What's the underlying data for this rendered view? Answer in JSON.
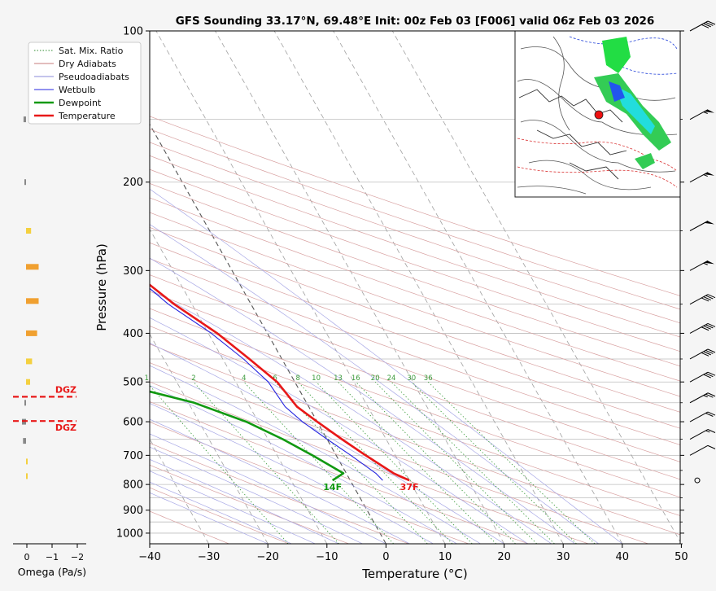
{
  "chart_data": {
    "type": "skew-t",
    "title": "GFS Sounding 33.17°N, 69.48°E Init: 00z Feb 03 [F006] valid 06z Feb 03 2026",
    "xlabel": "Temperature (°C)",
    "ylabel": "Pressure (hPa)",
    "xlim": [
      -40,
      50
    ],
    "ylim": [
      1050,
      100
    ],
    "y_scale": "log",
    "grid": true,
    "legend_position": "top-left",
    "xticks": [
      -40,
      -30,
      -20,
      -10,
      0,
      10,
      20,
      30,
      40,
      50
    ],
    "yticks": [
      100,
      200,
      300,
      400,
      500,
      600,
      700,
      800,
      900,
      1000
    ],
    "legend": [
      {
        "label": "Sat. Mix. Ratio",
        "color": "#2e8b2e",
        "style": "dotted"
      },
      {
        "label": "Dry Adiabats",
        "color": "#c77b7b",
        "style": "solid"
      },
      {
        "label": "Pseudoadiabats",
        "color": "#8a8ad8",
        "style": "solid"
      },
      {
        "label": "Wetbulb",
        "color": "#2525e0",
        "style": "solid"
      },
      {
        "label": "Dewpoint",
        "color": "#119911",
        "style": "thick"
      },
      {
        "label": "Temperature",
        "color": "#e81818",
        "style": "thick"
      }
    ],
    "series": [
      {
        "name": "Temperature",
        "color": "#e81818",
        "points": [
          [
            785,
            10
          ],
          [
            760,
            8
          ],
          [
            700,
            5
          ],
          [
            650,
            2.5
          ],
          [
            600,
            0
          ],
          [
            560,
            -2
          ],
          [
            500,
            -3
          ],
          [
            450,
            -5.5
          ],
          [
            400,
            -8.5
          ],
          [
            350,
            -13
          ],
          [
            300,
            -17
          ],
          [
            255,
            -22
          ],
          [
            200,
            -23
          ],
          [
            150,
            -25
          ],
          [
            100,
            -30
          ]
        ]
      },
      {
        "name": "Wetbulb",
        "color": "#2525e0",
        "points": [
          [
            785,
            5.5
          ],
          [
            760,
            5
          ],
          [
            700,
            2.5
          ],
          [
            650,
            0
          ],
          [
            600,
            -2.5
          ],
          [
            560,
            -4
          ],
          [
            500,
            -4.5
          ],
          [
            450,
            -6.5
          ],
          [
            400,
            -9.5
          ],
          [
            350,
            -14
          ],
          [
            300,
            -17.5
          ],
          [
            255,
            -22
          ],
          [
            200,
            -23
          ],
          [
            150,
            -25
          ],
          [
            100,
            -30
          ]
        ]
      },
      {
        "name": "Dewpoint",
        "color": "#119911",
        "points": [
          [
            785,
            -3
          ],
          [
            760,
            -0.5
          ],
          [
            700,
            -4
          ],
          [
            650,
            -7.5
          ],
          [
            600,
            -12
          ],
          [
            550,
            -19
          ],
          [
            500,
            -31
          ],
          [
            450,
            -35
          ],
          [
            400,
            -37
          ],
          [
            350,
            -47
          ],
          [
            300,
            -42
          ],
          [
            255,
            -42
          ],
          [
            200,
            -65
          ],
          [
            150,
            -80
          ],
          [
            100,
            -98
          ]
        ]
      }
    ],
    "surface_labels": {
      "temperature": "37F",
      "dewpoint": "14F"
    },
    "mixing_ratio_labels": [
      "1",
      "2",
      "4",
      "6",
      "8",
      "10",
      "13",
      "16",
      "20",
      "24",
      "30",
      "36"
    ],
    "omega": {
      "xlabel": "Omega (Pa/s)",
      "xticks": [
        "0",
        "−1",
        "−2"
      ],
      "dgz_label": "DGZ",
      "dgz_pressures": [
        535,
        598
      ],
      "bars": [
        {
          "p": 150,
          "value": 0.05,
          "color": "#888888"
        },
        {
          "p": 200,
          "value": 0.02,
          "color": "#888888"
        },
        {
          "p": 250,
          "value": -0.1,
          "color": "#f4d03f"
        },
        {
          "p": 295,
          "value": -0.25,
          "color": "#f0a030"
        },
        {
          "p": 345,
          "value": -0.25,
          "color": "#f0a030"
        },
        {
          "p": 400,
          "value": -0.22,
          "color": "#f0a030"
        },
        {
          "p": 455,
          "value": -0.12,
          "color": "#f4d03f"
        },
        {
          "p": 500,
          "value": -0.08,
          "color": "#f4d03f"
        },
        {
          "p": 550,
          "value": 0.03,
          "color": "#888888"
        },
        {
          "p": 600,
          "value": 0.08,
          "color": "#888888"
        },
        {
          "p": 655,
          "value": 0.06,
          "color": "#888888"
        },
        {
          "p": 720,
          "value": -0.02,
          "color": "#f4d03f"
        },
        {
          "p": 770,
          "value": -0.02,
          "color": "#f4d03f"
        }
      ]
    },
    "wind_barbs": [
      {
        "p": 100,
        "kt": 40
      },
      {
        "p": 150,
        "kt": 55
      },
      {
        "p": 200,
        "kt": 55
      },
      {
        "p": 250,
        "kt": 50
      },
      {
        "p": 300,
        "kt": 55
      },
      {
        "p": 350,
        "kt": 40
      },
      {
        "p": 400,
        "kt": 40
      },
      {
        "p": 450,
        "kt": 40
      },
      {
        "p": 500,
        "kt": 30
      },
      {
        "p": 550,
        "kt": 25
      },
      {
        "p": 600,
        "kt": 20
      },
      {
        "p": 650,
        "kt": 15
      },
      {
        "p": 700,
        "kt": 10
      },
      {
        "p": 785,
        "kt": 0
      }
    ]
  }
}
